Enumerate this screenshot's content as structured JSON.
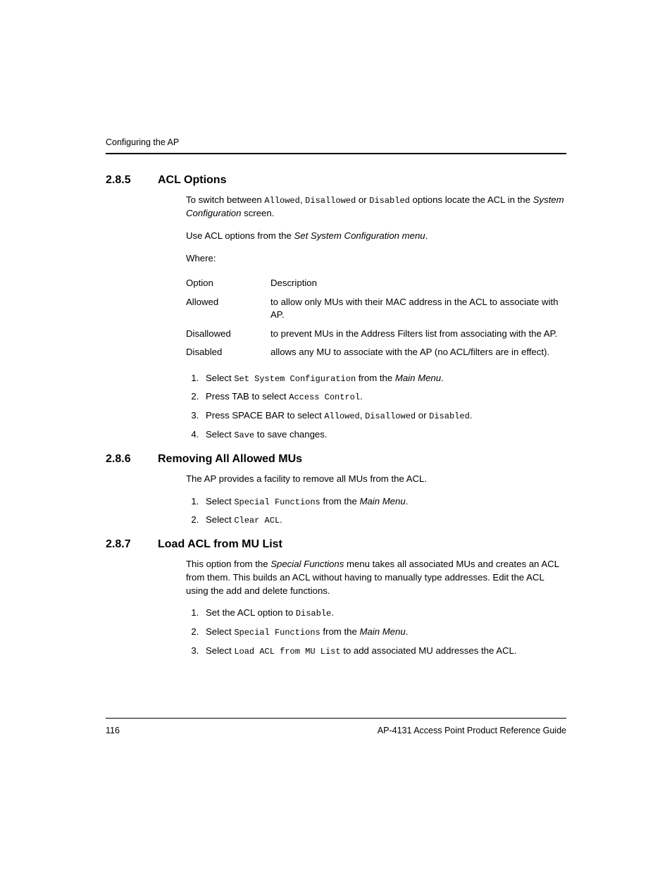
{
  "running_head": "Configuring the AP",
  "sections": {
    "s285": {
      "num": "2.8.5",
      "title": "ACL Options",
      "intro_pre": "To switch between ",
      "intro_mono1": "Allowed",
      "intro_sep1": ", ",
      "intro_mono2": "Disallowed",
      "intro_sep2": " or ",
      "intro_mono3": "Disabled",
      "intro_mid": " options locate the ACL in the ",
      "intro_ital": "System Configuration",
      "intro_post": " screen.",
      "use_pre": "Use ACL options from the ",
      "use_ital": "Set System Configuration menu",
      "use_post": ".",
      "where": "Where:",
      "tbl_hdr_opt": "Option",
      "tbl_hdr_desc": "Description",
      "opt1": "Allowed",
      "desc1": "to allow only MUs with their MAC address in the ACL to associate with AP.",
      "opt2": "Disallowed",
      "desc2": "to prevent MUs in the Address Filters list from associating with the AP.",
      "opt3": "Disabled",
      "desc3": "allows any MU to associate with the AP (no ACL/filters are in effect).",
      "step1_pre": "Select ",
      "step1_mono": "Set System Configuration",
      "step1_mid": " from the ",
      "step1_ital": "Main Menu",
      "step1_post": ".",
      "step2_pre": "Press TAB to select ",
      "step2_mono": "Access Control",
      "step2_post": ".",
      "step3_pre": "Press SPACE BAR to select ",
      "step3_mono1": "Allowed",
      "step3_sep1": ", ",
      "step3_mono2": "Disallowed",
      "step3_sep2": " or ",
      "step3_mono3": "Disabled",
      "step3_post": ".",
      "step4_pre": "Select ",
      "step4_mono": "Save",
      "step4_post": " to save changes."
    },
    "s286": {
      "num": "2.8.6",
      "title": "Removing All Allowed MUs",
      "intro": "The AP provides a facility to remove all MUs from the ACL.",
      "step1_pre": "Select ",
      "step1_mono": "Special Functions",
      "step1_mid": " from the ",
      "step1_ital": "Main Menu",
      "step1_post": ".",
      "step2_pre": "Select ",
      "step2_mono": "Clear ACL",
      "step2_post": "."
    },
    "s287": {
      "num": "2.8.7",
      "title": "Load ACL from MU List",
      "intro_pre": "This option from the ",
      "intro_ital": "Special Functions",
      "intro_post": " menu takes all associated MUs and creates an ACL from them. This builds an ACL without having to manually type addresses. Edit the ACL using the add and delete functions.",
      "step1_pre": "Set the ACL option to ",
      "step1_mono": "Disable",
      "step1_post": ".",
      "step2_pre": "Select ",
      "step2_mono": "Special Functions",
      "step2_mid": " from the ",
      "step2_ital": "Main Menu",
      "step2_post": ".",
      "step3_pre": "Select ",
      "step3_mono": "Load ACL from MU List",
      "step3_post": " to add associated MU addresses the ACL."
    }
  },
  "footer": {
    "page": "116",
    "doc": "AP-4131 Access Point Product Reference Guide"
  }
}
